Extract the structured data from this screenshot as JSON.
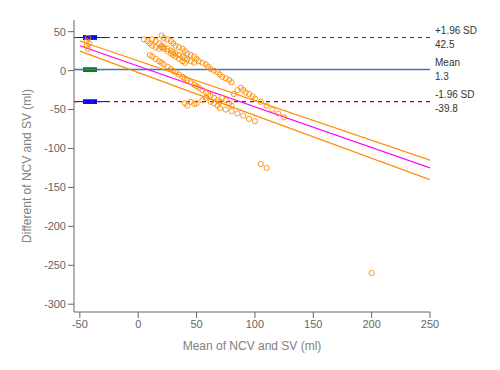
{
  "chart_data": {
    "type": "scatter",
    "xlabel": "Mean of NCV and SV (ml)",
    "ylabel": "Different of NCV and SV (ml)",
    "xlim": [
      -55,
      250
    ],
    "ylim": [
      -310,
      65
    ],
    "xticks": [
      -50,
      0,
      50,
      100,
      150,
      200,
      250
    ],
    "yticks": [
      -300,
      -250,
      -200,
      -150,
      -100,
      -50,
      0,
      50
    ],
    "grid": false,
    "series": [
      {
        "type": "hline",
        "value": 42.5,
        "color": "#C00000",
        "line_style": "dashed",
        "label": "+1.96 SD",
        "data_labels": true,
        "ci": {
          "low": 39.5,
          "high": 45.5,
          "colors": [
            "#0000FF",
            "#0000FF"
          ]
        }
      },
      {
        "type": "hline",
        "value": 1.3,
        "color": "#4472C4",
        "line_style": "solid",
        "label": "Mean",
        "data_labels": true,
        "ci": {
          "low": -1.7,
          "high": 4.3,
          "colors": [
            "#007700",
            "#0000FF"
          ]
        }
      },
      {
        "type": "hline",
        "value": -39.8,
        "color": "#C00000",
        "line_style": "dashed",
        "label": "-1.96 SD",
        "data_labels": true,
        "ci": {
          "low": -42.8,
          "high": -36.8,
          "colors": [
            "#0000FF",
            "#0000FF"
          ]
        }
      },
      {
        "type": "scatter",
        "color": "#FF8C00",
        "marker": "hollow",
        "values": [
          [
            -43,
            42
          ],
          [
            -44,
            38
          ],
          [
            -42,
            35
          ],
          [
            -44,
            32
          ],
          [
            -43,
            28
          ],
          [
            5,
            40
          ],
          [
            8,
            38
          ],
          [
            10,
            35
          ],
          [
            12,
            32
          ],
          [
            15,
            30
          ],
          [
            18,
            28
          ],
          [
            20,
            30
          ],
          [
            22,
            28
          ],
          [
            25,
            25
          ],
          [
            28,
            22
          ],
          [
            30,
            20
          ],
          [
            32,
            18
          ],
          [
            35,
            15
          ],
          [
            38,
            12
          ],
          [
            40,
            10
          ],
          [
            12,
            40
          ],
          [
            15,
            38
          ],
          [
            18,
            35
          ],
          [
            20,
            32
          ],
          [
            22,
            30
          ],
          [
            25,
            28
          ],
          [
            28,
            26
          ],
          [
            30,
            24
          ],
          [
            32,
            22
          ],
          [
            35,
            20
          ],
          [
            38,
            18
          ],
          [
            40,
            16
          ],
          [
            42,
            14
          ],
          [
            45,
            12
          ],
          [
            48,
            10
          ],
          [
            20,
            45
          ],
          [
            22,
            42
          ],
          [
            25,
            40
          ],
          [
            28,
            38
          ],
          [
            30,
            35
          ],
          [
            32,
            32
          ],
          [
            35,
            30
          ],
          [
            38,
            28
          ],
          [
            40,
            25
          ],
          [
            42,
            22
          ],
          [
            45,
            20
          ],
          [
            48,
            18
          ],
          [
            50,
            15
          ],
          [
            52,
            12
          ],
          [
            55,
            10
          ],
          [
            58,
            8
          ],
          [
            60,
            5
          ],
          [
            62,
            2
          ],
          [
            65,
            0
          ],
          [
            68,
            -2
          ],
          [
            70,
            -5
          ],
          [
            72,
            -8
          ],
          [
            75,
            -10
          ],
          [
            78,
            -12
          ],
          [
            80,
            -15
          ],
          [
            10,
            20
          ],
          [
            12,
            18
          ],
          [
            15,
            15
          ],
          [
            18,
            12
          ],
          [
            20,
            10
          ],
          [
            22,
            8
          ],
          [
            25,
            5
          ],
          [
            28,
            2
          ],
          [
            30,
            0
          ],
          [
            32,
            -2
          ],
          [
            35,
            -5
          ],
          [
            38,
            -8
          ],
          [
            40,
            -10
          ],
          [
            42,
            -12
          ],
          [
            45,
            -15
          ],
          [
            48,
            -18
          ],
          [
            50,
            -20
          ],
          [
            52,
            -22
          ],
          [
            55,
            -25
          ],
          [
            58,
            -28
          ],
          [
            60,
            -30
          ],
          [
            62,
            -32
          ],
          [
            65,
            -35
          ],
          [
            68,
            -38
          ],
          [
            70,
            -40
          ],
          [
            72,
            -35
          ],
          [
            75,
            -38
          ],
          [
            78,
            -42
          ],
          [
            80,
            -45
          ],
          [
            82,
            -30
          ],
          [
            85,
            -25
          ],
          [
            88,
            -22
          ],
          [
            90,
            -25
          ],
          [
            92,
            -28
          ],
          [
            95,
            -30
          ],
          [
            98,
            -33
          ],
          [
            100,
            -36
          ],
          [
            105,
            -40
          ],
          [
            110,
            -45
          ],
          [
            50,
            -42
          ],
          [
            55,
            -38
          ],
          [
            58,
            -35
          ],
          [
            62,
            -40
          ],
          [
            65,
            -42
          ],
          [
            68,
            -45
          ],
          [
            70,
            -48
          ],
          [
            75,
            -50
          ],
          [
            80,
            -52
          ],
          [
            85,
            -55
          ],
          [
            90,
            -58
          ],
          [
            95,
            -62
          ],
          [
            100,
            -65
          ],
          [
            40,
            -42
          ],
          [
            42,
            -45
          ],
          [
            45,
            -40
          ],
          [
            48,
            -43
          ],
          [
            115,
            -50
          ],
          [
            120,
            -55
          ],
          [
            125,
            -60
          ],
          [
            105,
            -120
          ],
          [
            110,
            -125
          ],
          [
            200,
            -260
          ]
        ]
      },
      {
        "type": "line",
        "color": "#FF8C00",
        "line_style": "solid",
        "x": [
          -50,
          250
        ],
        "values": [
          38,
          -115
        ]
      },
      {
        "type": "line",
        "color": "#FF8C00",
        "line_style": "solid",
        "x": [
          -50,
          250
        ],
        "values": [
          25,
          -140
        ]
      },
      {
        "type": "line",
        "color": "#FF00FF",
        "line_style": "solid",
        "x": [
          -50,
          250
        ],
        "values": [
          32,
          -125
        ]
      }
    ]
  }
}
